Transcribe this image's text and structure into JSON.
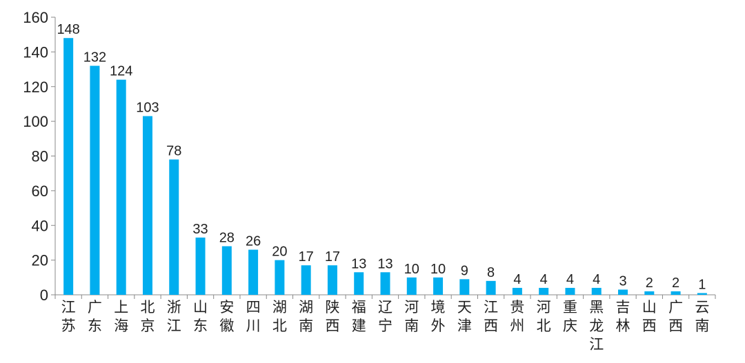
{
  "chart_data": {
    "type": "bar",
    "categories": [
      "江苏",
      "广东",
      "上海",
      "北京",
      "浙江",
      "山东",
      "安徽",
      "四川",
      "湖北",
      "湖南",
      "陕西",
      "福建",
      "辽宁",
      "河南",
      "境外",
      "天津",
      "江西",
      "贵州",
      "河北",
      "重庆",
      "黑龙江",
      "吉林",
      "山西",
      "广西",
      "云南"
    ],
    "values": [
      148,
      132,
      124,
      103,
      78,
      33,
      28,
      26,
      20,
      17,
      17,
      13,
      13,
      10,
      10,
      9,
      8,
      4,
      4,
      4,
      4,
      3,
      2,
      2,
      1
    ],
    "yticks": [
      "0",
      "20",
      "40",
      "60",
      "80",
      "100",
      "120",
      "140",
      "160"
    ],
    "ylim": [
      0,
      160
    ],
    "bar_color": "#00aeef",
    "grid": false,
    "legend": "none"
  }
}
